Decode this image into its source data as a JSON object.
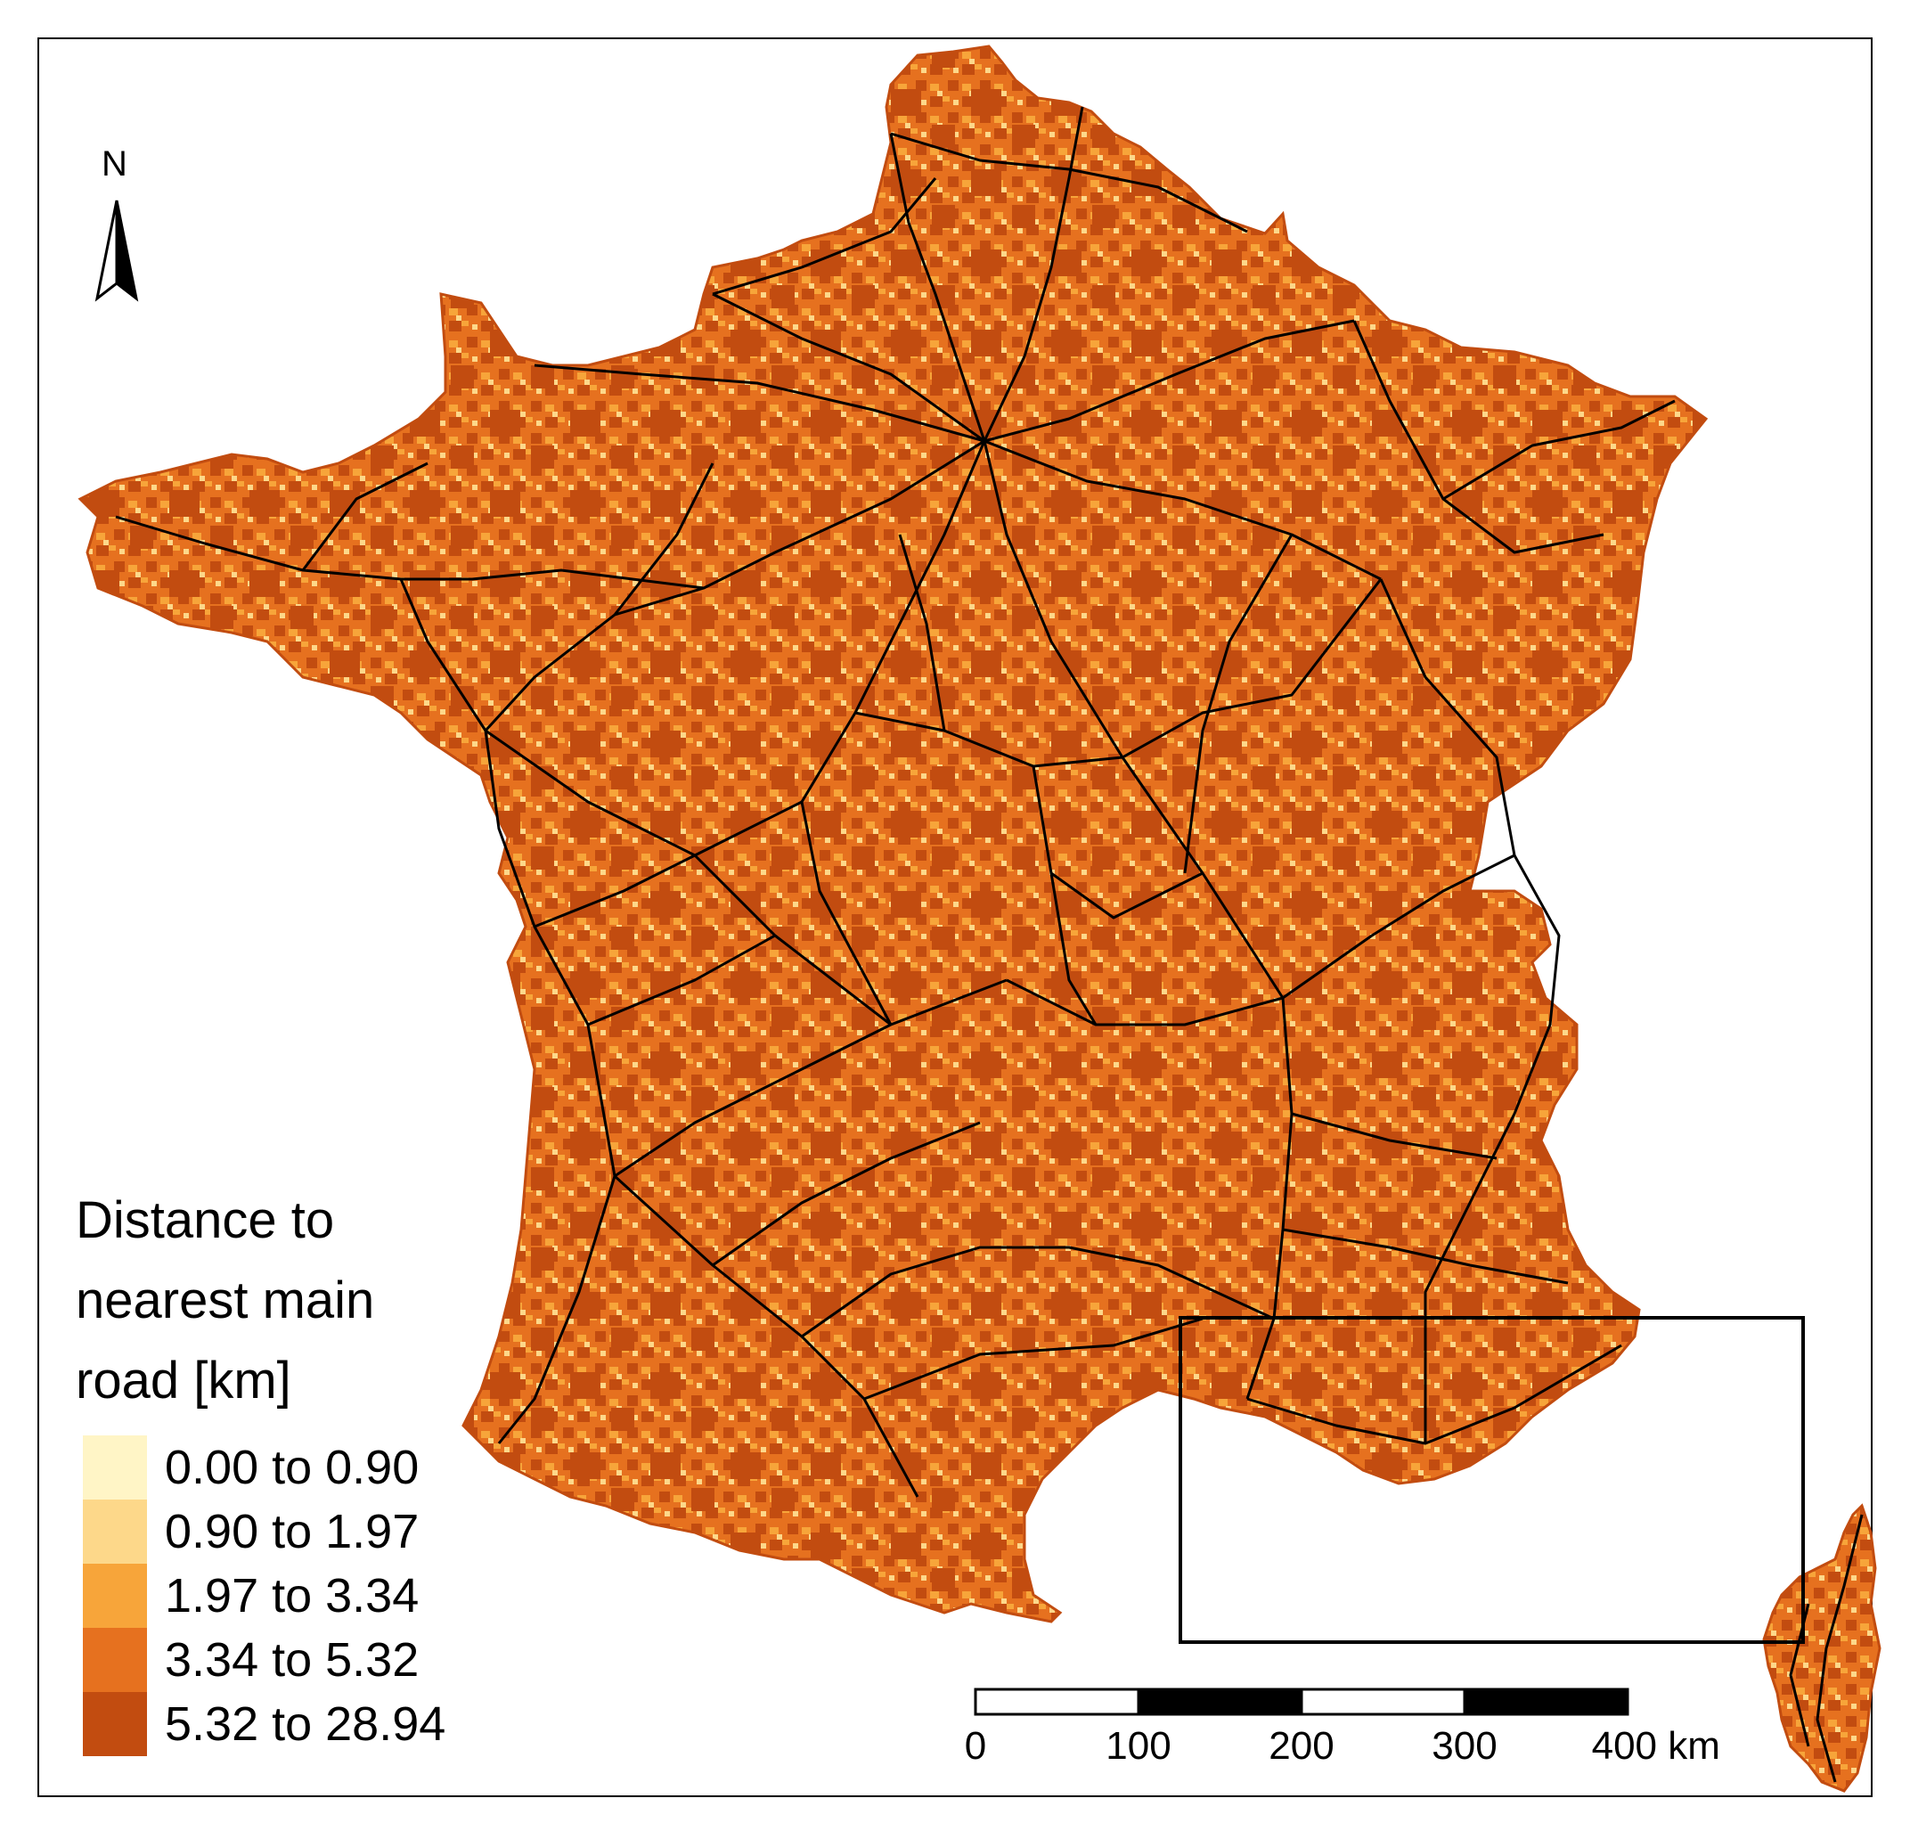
{
  "map": {
    "north_label": "N",
    "legend": {
      "title_lines": [
        "Distance to",
        "nearest main",
        "road [km]"
      ],
      "classes": [
        {
          "label": "0.00 to 0.90",
          "color": "#fff5c6"
        },
        {
          "label": "0.90 to 1.97",
          "color": "#fdd88a"
        },
        {
          "label": "1.97 to 3.34",
          "color": "#f7a53a"
        },
        {
          "label": "3.34 to 5.32",
          "color": "#e6711f"
        },
        {
          "label": "5.32 to 28.94",
          "color": "#c24c10"
        }
      ]
    },
    "scale_bar": {
      "ticks": [
        "0",
        "100",
        "200",
        "300",
        "400 km"
      ]
    },
    "colors": {
      "road": "#000000",
      "background": "#ffffff",
      "frame": "#000000",
      "inset_box": "#000000"
    }
  }
}
